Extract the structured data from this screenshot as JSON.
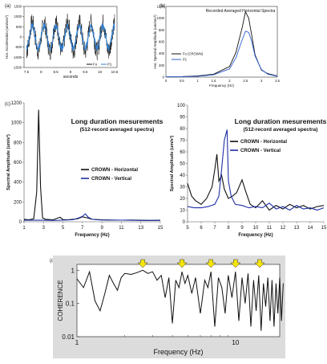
{
  "chart_data": [
    {
      "panel": "(a)",
      "type": "line",
      "title": "",
      "xlabel": "seconds",
      "ylabel": "Hor. Acceleration (um/sec²)",
      "xlim": [
        7.5,
        10.5
      ],
      "ylim": [
        -1500,
        1500
      ],
      "xticks": [
        "7.5",
        "8",
        "8.5",
        "9",
        "9.5",
        "10",
        "10.5"
      ],
      "yticks": [
        "1500",
        "1000",
        "500",
        "0",
        "-500",
        "-1000",
        "-1500"
      ],
      "legend": "bottom-right",
      "series": [
        {
          "name": "Fo",
          "color": "#111111",
          "amplitude": 700,
          "period": 0.4,
          "noise": 450
        },
        {
          "name": "P1",
          "color": "#2f7fd0",
          "amplitude": 560,
          "period": 0.4,
          "noise": 160
        }
      ]
    },
    {
      "panel": "(b)",
      "type": "line",
      "title": "Recorded Averaged Horizontal Spectra",
      "xlabel": "Frequency (Hz)",
      "ylabel": "Hor. Spectral Amplitude (um/sec²)",
      "xlim": [
        0,
        3.5
      ],
      "ylim": [
        0,
        1200
      ],
      "xticks": [
        "0",
        "0.5",
        "1",
        "1.5",
        "2",
        "2.5",
        "3",
        "3.5"
      ],
      "yticks": [
        "0",
        "200",
        "400",
        "600",
        "800",
        "1000",
        "1200"
      ],
      "legend": "center-left",
      "series": [
        {
          "name": "Fo (CROWN)",
          "color": "#111111",
          "x": [
            0,
            0.5,
            1.0,
            1.5,
            2.0,
            2.2,
            2.4,
            2.5,
            2.6,
            2.7,
            2.8,
            3.0,
            3.2,
            3.5
          ],
          "y": [
            5,
            10,
            20,
            50,
            180,
            420,
            850,
            1110,
            1000,
            700,
            380,
            120,
            60,
            20
          ]
        },
        {
          "name": "P1",
          "color": "#2f5fd0",
          "x": [
            0,
            0.5,
            1.0,
            1.5,
            2.0,
            2.2,
            2.4,
            2.5,
            2.6,
            2.7,
            2.8,
            3.0,
            3.2,
            3.5
          ],
          "y": [
            5,
            8,
            15,
            40,
            140,
            330,
            640,
            780,
            760,
            600,
            360,
            130,
            50,
            15
          ]
        }
      ]
    },
    {
      "panel": "(c)",
      "type": "line",
      "title": "Long duration mesurements",
      "subtitle": "(512-record averaged spectra)",
      "xlabel": "Frequency (Hz)",
      "ylabel": "Spectral Amplitude (um/s²)",
      "xlim": [
        1,
        15
      ],
      "ylim": [
        0,
        1200
      ],
      "xticks": [
        "1",
        "3",
        "5",
        "7",
        "9",
        "11",
        "13",
        "15"
      ],
      "yticks": [
        "0",
        "200",
        "400",
        "600",
        "800",
        "1000",
        "1200"
      ],
      "legend": "center-right",
      "series": [
        {
          "name": "CROWN - Horizontal",
          "color": "#111111",
          "x": [
            1,
            1.5,
            2.0,
            2.3,
            2.5,
            2.7,
            2.9,
            3.2,
            4.0,
            4.7,
            5.0,
            5.5,
            6.5,
            7.0,
            7.5,
            8.0,
            9.0,
            10.0,
            11.0,
            12.0,
            13.0,
            14.0,
            15.0
          ],
          "y": [
            25,
            20,
            30,
            300,
            1130,
            350,
            40,
            25,
            20,
            45,
            22,
            20,
            30,
            50,
            40,
            25,
            20,
            18,
            16,
            18,
            15,
            14,
            15
          ]
        },
        {
          "name": "CROWN - Vertical",
          "color": "#1f2fa8",
          "x": [
            1,
            2,
            3,
            4,
            5,
            6,
            6.5,
            7.0,
            7.3,
            7.6,
            8.0,
            8.5,
            9,
            10,
            11,
            12,
            13,
            14,
            15
          ],
          "y": [
            15,
            15,
            15,
            14,
            16,
            20,
            35,
            55,
            80,
            45,
            25,
            20,
            18,
            16,
            16,
            15,
            14,
            14,
            14
          ]
        }
      ]
    },
    {
      "panel": "(c-right)",
      "type": "line",
      "title": "Long duration mesurements",
      "subtitle": "(512-record averaged spectra)",
      "xlabel": "Frequency (Hz)",
      "ylabel": "Spectral Amplitude (um/s²)",
      "xlim": [
        5,
        15
      ],
      "ylim": [
        0,
        100
      ],
      "xticks": [
        "5",
        "6",
        "7",
        "8",
        "9",
        "10",
        "11",
        "12",
        "13",
        "14",
        "15"
      ],
      "yticks": [
        "0",
        "10",
        "20",
        "30",
        "40",
        "50",
        "60",
        "70",
        "80",
        "90",
        "100"
      ],
      "legend": "top-right",
      "series": [
        {
          "name": "CROWN - Horizontal",
          "color": "#111111",
          "x": [
            5.0,
            5.3,
            5.6,
            6.0,
            6.4,
            6.8,
            7.0,
            7.15,
            7.3,
            7.5,
            7.7,
            8.0,
            8.3,
            8.6,
            9.0,
            9.3,
            9.6,
            10.0,
            10.5,
            11.0,
            11.5,
            12.0,
            12.5,
            13.0,
            13.5,
            14.0,
            14.5,
            15.0
          ],
          "y": [
            33,
            22,
            18,
            15,
            20,
            30,
            45,
            58,
            35,
            40,
            28,
            20,
            22,
            25,
            36,
            25,
            15,
            12,
            18,
            10,
            14,
            11,
            15,
            12,
            14,
            11,
            13,
            14
          ]
        },
        {
          "name": "CROWN - Vertical",
          "color": "#1f2fa8",
          "x": [
            5.0,
            5.5,
            6.0,
            6.5,
            7.0,
            7.3,
            7.5,
            7.7,
            7.9,
            8.0,
            8.2,
            8.5,
            9.0,
            9.5,
            10.0,
            10.5,
            11.0,
            11.5,
            12.0,
            12.5,
            13.0,
            13.5,
            14.0,
            14.5,
            15.0
          ],
          "y": [
            13,
            12,
            12,
            13,
            15,
            22,
            45,
            70,
            79,
            35,
            22,
            15,
            14,
            12,
            13,
            12,
            16,
            11,
            13,
            10,
            14,
            11,
            12,
            10,
            12
          ]
        }
      ]
    },
    {
      "panel": "(d)",
      "type": "line",
      "title": "",
      "xlabel": "Frequency (Hz)",
      "ylabel": "COHERENCE",
      "xscale": "log",
      "yscale": "log",
      "xlim": [
        1,
        20
      ],
      "ylim": [
        0.01,
        1.5
      ],
      "xticks": [
        "1",
        "10"
      ],
      "yticks": [
        "1",
        "0.1",
        "0.01"
      ],
      "arrow_frequencies": [
        2.6,
        4.6,
        7.0,
        10.0,
        14.2
      ],
      "arrow_color": "#f5e50a",
      "series": [
        {
          "name": "",
          "color": "#111111",
          "x": [
            1.0,
            1.1,
            1.2,
            1.3,
            1.4,
            1.5,
            1.6,
            1.7,
            1.8,
            1.9,
            2.0,
            2.2,
            2.4,
            2.6,
            2.8,
            3.0,
            3.2,
            3.4,
            3.6,
            3.8,
            4.0,
            4.2,
            4.4,
            4.6,
            4.8,
            5.0,
            5.3,
            5.6,
            6.0,
            6.4,
            6.7,
            7.0,
            7.4,
            7.8,
            8.2,
            8.6,
            9.0,
            9.5,
            10.0,
            10.5,
            11.0,
            11.5,
            12.0,
            12.5,
            13.0,
            13.5,
            14.0,
            14.5,
            15.0,
            15.5,
            16.0,
            16.5,
            17.0,
            17.5,
            18.0,
            18.5,
            19.0,
            19.5,
            20.0
          ],
          "y": [
            0.55,
            0.3,
            0.9,
            0.12,
            0.06,
            0.2,
            0.7,
            0.4,
            0.25,
            0.6,
            0.8,
            0.75,
            0.85,
            1.0,
            0.8,
            0.9,
            0.5,
            0.7,
            0.15,
            0.6,
            0.025,
            0.5,
            0.3,
            0.9,
            0.4,
            0.7,
            0.2,
            0.6,
            0.05,
            0.5,
            0.3,
            0.9,
            0.02,
            0.6,
            0.3,
            0.05,
            0.7,
            0.15,
            0.9,
            0.03,
            0.6,
            0.1,
            0.8,
            0.02,
            0.5,
            0.06,
            0.7,
            0.015,
            0.4,
            0.08,
            0.6,
            0.03,
            0.5,
            0.02,
            0.4,
            0.05,
            0.6,
            0.03,
            0.4
          ]
        }
      ]
    }
  ]
}
